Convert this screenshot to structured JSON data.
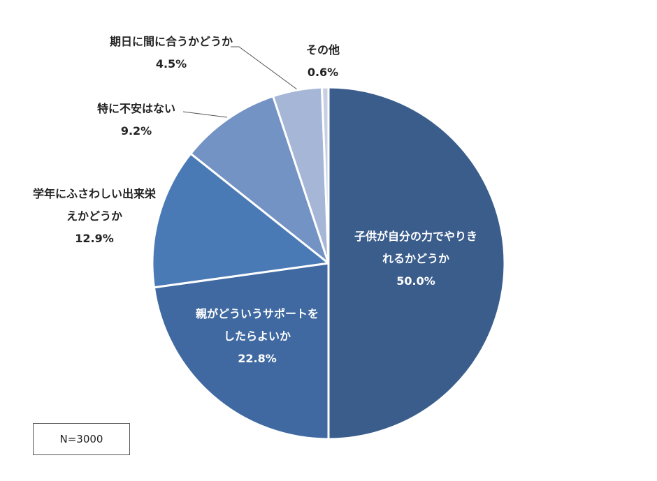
{
  "chart_data": {
    "type": "pie",
    "categories": [
      "子供が自分の力でやりきれるかどうか",
      "親がどういうサポートをしたらよいか",
      "学年にふさわしい出来栄えかどうか",
      "特に不安はない",
      "期日に間に合うかどうか",
      "その他"
    ],
    "values": [
      50.0,
      22.8,
      12.9,
      9.2,
      4.5,
      0.6
    ],
    "value_labels": [
      "50.0%",
      "22.8%",
      "12.9%",
      "9.2%",
      "4.5%",
      "0.6%"
    ],
    "colors": [
      "#3a5d8c",
      "#3f69a0",
      "#4a7ab5",
      "#7393c4",
      "#a5b6d6",
      "#c7d0e3"
    ],
    "note": "N=3000"
  }
}
